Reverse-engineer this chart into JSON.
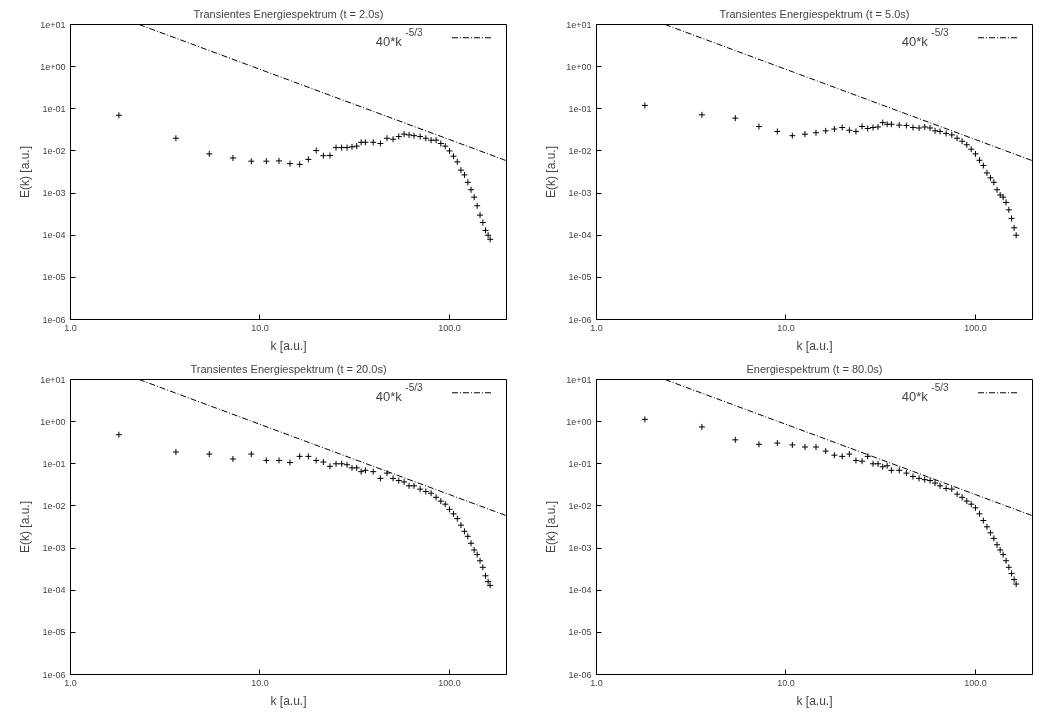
{
  "chart_data": [
    {
      "type": "scatter",
      "title": "Transientes Energiespektrum (t = 2.0s)",
      "xlabel": "k [a.u.]",
      "ylabel": "E(k) [a.u.]",
      "log": "xy",
      "legend": "top right",
      "grid": false,
      "xlim": [
        1,
        200
      ],
      "ylim": [
        1e-06,
        10
      ],
      "xticks": [
        {
          "value": 1,
          "label": "1.0"
        },
        {
          "value": 10,
          "label": "10.0"
        },
        {
          "value": 100,
          "label": "100.0"
        }
      ],
      "yticks": [
        {
          "value": 1e-06,
          "label": "1e-06"
        },
        {
          "value": 1e-05,
          "label": "1e-05"
        },
        {
          "value": 0.0001,
          "label": "1e-04"
        },
        {
          "value": 0.001,
          "label": "1e-03"
        },
        {
          "value": 0.01,
          "label": "1e-02"
        },
        {
          "value": 0.1,
          "label": "1e-01"
        },
        {
          "value": 1,
          "label": "1e+00"
        },
        {
          "value": 10,
          "label": "1e+01"
        }
      ],
      "x": [
        1.8,
        3.6,
        5.4,
        7.2,
        9,
        10.8,
        12.6,
        14.4,
        16.2,
        18,
        19.8,
        21.6,
        23.4,
        25.2,
        27,
        28.8,
        30.6,
        32.4,
        34.2,
        36,
        39.6,
        43.2,
        46.8,
        50.4,
        54,
        57.6,
        61.2,
        65,
        70,
        75,
        80,
        85,
        90,
        95,
        100,
        105,
        110,
        115,
        120,
        125,
        130,
        135,
        140,
        145,
        150,
        155,
        160,
        164
      ],
      "series": [
        {
          "marker": "cross",
          "color": "#000000",
          "values": [
            0.07,
            0.02,
            0.0085,
            0.0068,
            0.0057,
            0.0057,
            0.0058,
            0.005,
            0.0048,
            0.0063,
            0.0102,
            0.0077,
            0.0078,
            0.012,
            0.012,
            0.012,
            0.0125,
            0.013,
            0.016,
            0.016,
            0.016,
            0.015,
            0.02,
            0.019,
            0.022,
            0.025,
            0.024,
            0.023,
            0.022,
            0.02,
            0.018,
            0.018,
            0.015,
            0.013,
            0.01,
            0.0075,
            0.0055,
            0.0035,
            0.0027,
            0.0018,
            0.0012,
            0.0008,
            0.0005,
            0.0003,
            0.0002,
            0.00013,
            0.0001,
            8e-05
          ]
        },
        {
          "type": "line",
          "marker": "none",
          "name": "40*k$^{-5/3}$",
          "color": "#000000",
          "line_style": "dashed",
          "x": [
            2.3,
            10,
            100,
            200
          ],
          "values": [
            10,
            0.862,
            0.0186,
            0.00585
          ]
        }
      ]
    },
    {
      "type": "scatter",
      "title": "Transientes Energiespektrum (t = 5.0s)",
      "xlabel": "k [a.u.]",
      "ylabel": "E(k) [a.u.]",
      "log": "xy",
      "legend": "top right",
      "grid": false,
      "xlim": [
        1,
        200
      ],
      "ylim": [
        1e-06,
        10
      ],
      "xticks": [
        {
          "value": 1,
          "label": "1.0"
        },
        {
          "value": 10,
          "label": "10.0"
        },
        {
          "value": 100,
          "label": "100.0"
        }
      ],
      "yticks": [
        {
          "value": 1e-06,
          "label": "1e-06"
        },
        {
          "value": 1e-05,
          "label": "1e-05"
        },
        {
          "value": 0.0001,
          "label": "1e-04"
        },
        {
          "value": 0.001,
          "label": "1e-03"
        },
        {
          "value": 0.01,
          "label": "1e-02"
        },
        {
          "value": 0.1,
          "label": "1e-01"
        },
        {
          "value": 1,
          "label": "1e+00"
        },
        {
          "value": 10,
          "label": "1e+01"
        }
      ],
      "x": [
        1.8,
        3.6,
        5.4,
        7.2,
        9,
        10.8,
        12.6,
        14.4,
        16.2,
        18,
        19.8,
        21.6,
        23.4,
        25.2,
        27,
        28.8,
        30.6,
        32.4,
        34.2,
        36,
        39.6,
        43.2,
        46.8,
        50.4,
        54,
        57.6,
        61.2,
        65,
        70,
        75,
        80,
        85,
        90,
        95,
        100,
        105,
        110,
        115,
        120,
        125,
        130,
        135,
        140,
        145,
        150,
        155,
        160,
        164
      ],
      "series": [
        {
          "marker": "cross",
          "color": "#000000",
          "values": [
            0.12,
            0.072,
            0.06,
            0.038,
            0.029,
            0.023,
            0.025,
            0.027,
            0.03,
            0.033,
            0.036,
            0.031,
            0.029,
            0.038,
            0.034,
            0.036,
            0.037,
            0.047,
            0.043,
            0.043,
            0.041,
            0.04,
            0.036,
            0.035,
            0.037,
            0.035,
            0.03,
            0.029,
            0.026,
            0.024,
            0.02,
            0.017,
            0.014,
            0.011,
            0.0085,
            0.006,
            0.0045,
            0.003,
            0.0023,
            0.0018,
            0.0012,
            0.0009,
            0.0008,
            0.0006,
            0.0004,
            0.00025,
            0.00015,
            0.0001
          ]
        },
        {
          "type": "line",
          "marker": "none",
          "name": "40*k$^{-5/3}$",
          "color": "#000000",
          "line_style": "dashed",
          "x": [
            2.3,
            10,
            100,
            200
          ],
          "values": [
            10,
            0.862,
            0.0186,
            0.00585
          ]
        }
      ]
    },
    {
      "type": "scatter",
      "title": "Transientes Energiespektrum (t = 20.0s)",
      "xlabel": "k [a.u.]",
      "ylabel": "E(k) [a.u.]",
      "log": "xy",
      "legend": "top right",
      "grid": false,
      "xlim": [
        1,
        200
      ],
      "ylim": [
        1e-06,
        10
      ],
      "xticks": [
        {
          "value": 1,
          "label": "1.0"
        },
        {
          "value": 10,
          "label": "10.0"
        },
        {
          "value": 100,
          "label": "100.0"
        }
      ],
      "yticks": [
        {
          "value": 1e-06,
          "label": "1e-06"
        },
        {
          "value": 1e-05,
          "label": "1e-05"
        },
        {
          "value": 0.0001,
          "label": "1e-04"
        },
        {
          "value": 0.001,
          "label": "1e-03"
        },
        {
          "value": 0.01,
          "label": "1e-02"
        },
        {
          "value": 0.1,
          "label": "1e-01"
        },
        {
          "value": 1,
          "label": "1e+00"
        },
        {
          "value": 10,
          "label": "1e+01"
        }
      ],
      "x": [
        1.8,
        3.6,
        5.4,
        7.2,
        9,
        10.8,
        12.6,
        14.4,
        16.2,
        18,
        19.8,
        21.6,
        23.4,
        25.2,
        27,
        28.8,
        30.6,
        32.4,
        34.2,
        36,
        39.6,
        43.2,
        46.8,
        50.4,
        54,
        57.6,
        61.2,
        65,
        70,
        75,
        80,
        85,
        90,
        95,
        100,
        105,
        110,
        115,
        120,
        125,
        130,
        135,
        140,
        145,
        150,
        155,
        160,
        164
      ],
      "series": [
        {
          "marker": "cross",
          "color": "#000000",
          "values": [
            0.49,
            0.19,
            0.17,
            0.13,
            0.17,
            0.12,
            0.12,
            0.107,
            0.15,
            0.15,
            0.12,
            0.11,
            0.087,
            0.1,
            0.1,
            0.095,
            0.08,
            0.08,
            0.065,
            0.07,
            0.065,
            0.045,
            0.06,
            0.045,
            0.04,
            0.037,
            0.03,
            0.03,
            0.025,
            0.022,
            0.02,
            0.016,
            0.013,
            0.011,
            0.0083,
            0.0065,
            0.005,
            0.0035,
            0.0025,
            0.0019,
            0.0013,
            0.0009,
            0.0007,
            0.0005,
            0.00035,
            0.00022,
            0.00016,
            0.00013
          ]
        },
        {
          "type": "line",
          "marker": "none",
          "name": "40*k$^{-5/3}$",
          "color": "#000000",
          "line_style": "dashed",
          "x": [
            2.3,
            10,
            100,
            200
          ],
          "values": [
            10,
            0.862,
            0.0186,
            0.00585
          ]
        }
      ]
    },
    {
      "type": "scatter",
      "title": "Energiespektrum (t = 80.0s)",
      "xlabel": "k [a.u.]",
      "ylabel": "E(k) [a.u.]",
      "log": "xy",
      "legend": "top right",
      "grid": false,
      "xlim": [
        1,
        200
      ],
      "ylim": [
        1e-06,
        10
      ],
      "xticks": [
        {
          "value": 1,
          "label": "1.0"
        },
        {
          "value": 10,
          "label": "10.0"
        },
        {
          "value": 100,
          "label": "100.0"
        }
      ],
      "yticks": [
        {
          "value": 1e-06,
          "label": "1e-06"
        },
        {
          "value": 1e-05,
          "label": "1e-05"
        },
        {
          "value": 0.0001,
          "label": "1e-04"
        },
        {
          "value": 0.001,
          "label": "1e-03"
        },
        {
          "value": 0.01,
          "label": "1e-02"
        },
        {
          "value": 0.1,
          "label": "1e-01"
        },
        {
          "value": 1,
          "label": "1e+00"
        },
        {
          "value": 10,
          "label": "1e+01"
        }
      ],
      "x": [
        1.8,
        3.6,
        5.4,
        7.2,
        9,
        10.8,
        12.6,
        14.4,
        16.2,
        18,
        19.8,
        21.6,
        23.4,
        25.2,
        27,
        28.8,
        30.6,
        32.4,
        34.2,
        36,
        39.6,
        43.2,
        46.8,
        50.4,
        54,
        57.6,
        61.2,
        65,
        70,
        75,
        80,
        85,
        90,
        95,
        100,
        105,
        110,
        115,
        120,
        125,
        130,
        135,
        140,
        145,
        150,
        155,
        160,
        164
      ],
      "series": [
        {
          "marker": "cross",
          "color": "#000000",
          "values": [
            1.13,
            0.75,
            0.37,
            0.29,
            0.31,
            0.28,
            0.25,
            0.25,
            0.2,
            0.16,
            0.15,
            0.17,
            0.12,
            0.115,
            0.15,
            0.1,
            0.1,
            0.085,
            0.09,
            0.07,
            0.07,
            0.06,
            0.05,
            0.045,
            0.042,
            0.04,
            0.035,
            0.03,
            0.026,
            0.025,
            0.019,
            0.016,
            0.013,
            0.011,
            0.009,
            0.0065,
            0.0045,
            0.0032,
            0.0023,
            0.0017,
            0.0012,
            0.0009,
            0.0007,
            0.0005,
            0.00035,
            0.00025,
            0.00018,
            0.00014
          ]
        },
        {
          "type": "line",
          "marker": "none",
          "name": "40*k$^{-5/3}$",
          "color": "#000000",
          "line_style": "dashed",
          "x": [
            2.3,
            10,
            100,
            200
          ],
          "values": [
            10,
            0.862,
            0.0186,
            0.00585
          ]
        }
      ]
    }
  ]
}
